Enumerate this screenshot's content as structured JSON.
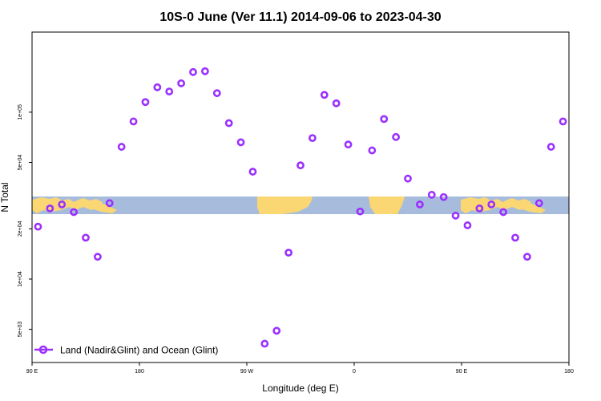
{
  "chart_data": {
    "type": "scatter",
    "title": "10S-0 June (Ver 11.1)   2014-09-06 to 2023-04-30",
    "xlabel": "Longitude (deg E)",
    "ylabel": "N Total",
    "xlim": [
      90,
      540
    ],
    "y_scale": "log",
    "ylim_log10": [
      3.5,
      5.48
    ],
    "x_ticks": [
      {
        "value": 90,
        "label": "90 E"
      },
      {
        "value": 180,
        "label": "180"
      },
      {
        "value": 270,
        "label": "90 W"
      },
      {
        "value": 360,
        "label": "0"
      },
      {
        "value": 450,
        "label": "90 E"
      },
      {
        "value": 540,
        "label": "180"
      }
    ],
    "y_ticks": [
      {
        "value": 5000,
        "label": "5e+03"
      },
      {
        "value": 10000,
        "label": "1e+04"
      },
      {
        "value": 20000,
        "label": "2e+04"
      },
      {
        "value": 50000,
        "label": "5e+04"
      },
      {
        "value": 100000,
        "label": "1e+05"
      }
    ],
    "map_band": {
      "lat_range": "10S to 0",
      "ocean_color": "#a7bcdc",
      "land_color": "#fad773"
    },
    "marker_color": "#9b30ff",
    "legend": {
      "label": "Land (Nadir&Glint) and Ocean (Glint)",
      "position": "bottom-left"
    },
    "series": [
      {
        "name": "Land (Nadir&Glint) and Ocean (Glint)",
        "x": [
          95,
          105,
          115,
          125,
          135,
          145,
          155,
          165,
          175,
          185,
          195,
          205,
          215,
          225,
          235,
          245,
          255,
          265,
          275,
          285,
          295,
          305,
          315,
          325,
          335,
          345,
          355,
          365,
          375,
          385,
          395,
          405,
          415,
          425,
          435,
          445,
          455,
          465,
          475,
          485,
          495,
          505,
          515,
          525,
          535
        ],
        "y": [
          20600,
          26500,
          28000,
          25200,
          17700,
          13600,
          28500,
          62000,
          88000,
          115000,
          141000,
          133000,
          149000,
          174000,
          176000,
          130000,
          86000,
          66000,
          44000,
          4100,
          4900,
          14400,
          48000,
          70000,
          127000,
          113000,
          64000,
          25400,
          59000,
          91000,
          71000,
          40000,
          28000,
          32000,
          31000,
          24000,
          21000,
          26500,
          28000,
          25200,
          17700,
          13600,
          28500,
          62000,
          88000
        ]
      }
    ]
  }
}
